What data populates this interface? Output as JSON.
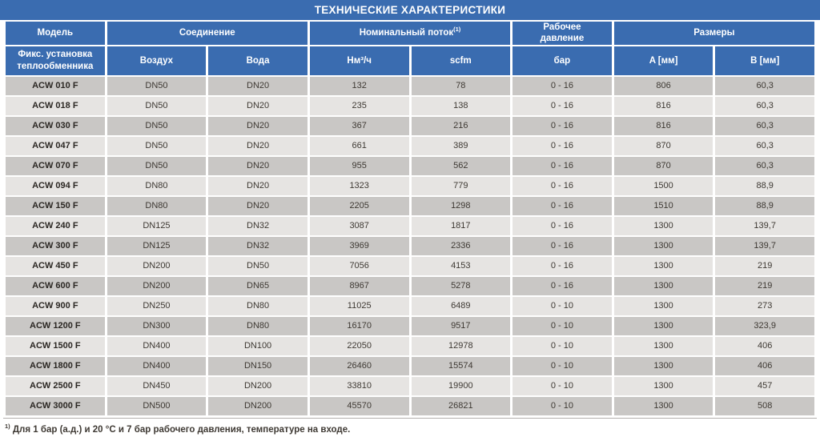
{
  "title": "ТЕХНИЧЕСКИЕ ХАРАКТЕРИСТИКИ",
  "colors": {
    "header_blue": "#3a6cb0",
    "row_dark_gray": "#c9c7c5",
    "row_light_gray": "#e6e4e2",
    "header_text": "#ffffff",
    "body_text": "#3e3933"
  },
  "header": {
    "group_model": "Модель",
    "group_connection": "Соединение",
    "group_flow": "Номинальный поток",
    "group_flow_sup": "(1)",
    "group_pressure": "Рабочее давление",
    "group_dimensions": "Размеры",
    "sub_model": "Фикс. установка теплообменника",
    "sub_air": "Воздух",
    "sub_water": "Вода",
    "sub_flow_nm": "Нм³/ч",
    "sub_flow_scfm": "scfm",
    "sub_pressure_bar": "бар",
    "sub_dim_a": "A [мм]",
    "sub_dim_b": "B [мм]"
  },
  "rows": [
    {
      "model": "ACW 010 F",
      "air": "DN50",
      "water": "DN20",
      "nm3h": "132",
      "scfm": "78",
      "pressure": "0 - 16",
      "a": "806",
      "b": "60,3"
    },
    {
      "model": "ACW 018 F",
      "air": "DN50",
      "water": "DN20",
      "nm3h": "235",
      "scfm": "138",
      "pressure": "0 - 16",
      "a": "816",
      "b": "60,3"
    },
    {
      "model": "ACW 030 F",
      "air": "DN50",
      "water": "DN20",
      "nm3h": "367",
      "scfm": "216",
      "pressure": "0 - 16",
      "a": "816",
      "b": "60,3"
    },
    {
      "model": "ACW 047 F",
      "air": "DN50",
      "water": "DN20",
      "nm3h": "661",
      "scfm": "389",
      "pressure": "0 - 16",
      "a": "870",
      "b": "60,3"
    },
    {
      "model": "ACW 070 F",
      "air": "DN50",
      "water": "DN20",
      "nm3h": "955",
      "scfm": "562",
      "pressure": "0 - 16",
      "a": "870",
      "b": "60,3"
    },
    {
      "model": "ACW 094 F",
      "air": "DN80",
      "water": "DN20",
      "nm3h": "1323",
      "scfm": "779",
      "pressure": "0 - 16",
      "a": "1500",
      "b": "88,9"
    },
    {
      "model": "ACW 150 F",
      "air": "DN80",
      "water": "DN20",
      "nm3h": "2205",
      "scfm": "1298",
      "pressure": "0 - 16",
      "a": "1510",
      "b": "88,9"
    },
    {
      "model": "ACW 240 F",
      "air": "DN125",
      "water": "DN32",
      "nm3h": "3087",
      "scfm": "1817",
      "pressure": "0 - 16",
      "a": "1300",
      "b": "139,7"
    },
    {
      "model": "ACW 300 F",
      "air": "DN125",
      "water": "DN32",
      "nm3h": "3969",
      "scfm": "2336",
      "pressure": "0 - 16",
      "a": "1300",
      "b": "139,7"
    },
    {
      "model": "ACW 450 F",
      "air": "DN200",
      "water": "DN50",
      "nm3h": "7056",
      "scfm": "4153",
      "pressure": "0 - 16",
      "a": "1300",
      "b": "219"
    },
    {
      "model": "ACW 600 F",
      "air": "DN200",
      "water": "DN65",
      "nm3h": "8967",
      "scfm": "5278",
      "pressure": "0 - 16",
      "a": "1300",
      "b": "219"
    },
    {
      "model": "ACW 900 F",
      "air": "DN250",
      "water": "DN80",
      "nm3h": "11025",
      "scfm": "6489",
      "pressure": "0 - 10",
      "a": "1300",
      "b": "273"
    },
    {
      "model": "ACW 1200 F",
      "air": "DN300",
      "water": "DN80",
      "nm3h": "16170",
      "scfm": "9517",
      "pressure": "0 - 10",
      "a": "1300",
      "b": "323,9"
    },
    {
      "model": "ACW 1500 F",
      "air": "DN400",
      "water": "DN100",
      "nm3h": "22050",
      "scfm": "12978",
      "pressure": "0 - 10",
      "a": "1300",
      "b": "406"
    },
    {
      "model": "ACW 1800 F",
      "air": "DN400",
      "water": "DN150",
      "nm3h": "26460",
      "scfm": "15574",
      "pressure": "0 - 10",
      "a": "1300",
      "b": "406"
    },
    {
      "model": "ACW 2500 F",
      "air": "DN450",
      "water": "DN200",
      "nm3h": "33810",
      "scfm": "19900",
      "pressure": "0 - 10",
      "a": "1300",
      "b": "457"
    },
    {
      "model": "ACW 3000 F",
      "air": "DN500",
      "water": "DN200",
      "nm3h": "45570",
      "scfm": "26821",
      "pressure": "0 - 10",
      "a": "1300",
      "b": "508"
    }
  ],
  "footnote": {
    "sup": "1)",
    "text": " Для 1 бар (а.д.) и 20 °C и 7 бар рабочего давления, температуре на входе."
  }
}
